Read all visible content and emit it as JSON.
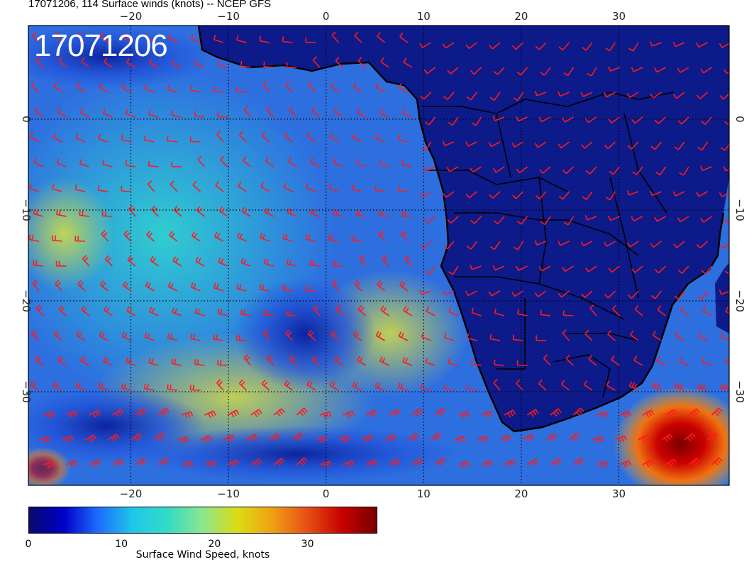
{
  "header": {
    "title": "17071206, 114 Surface winds (knots) -- NCEP GFS",
    "stamp": "17071206"
  },
  "map": {
    "lon_ticks": [
      {
        "value": -20,
        "label": "−20"
      },
      {
        "value": -10,
        "label": "−10"
      },
      {
        "value": 0,
        "label": "0"
      },
      {
        "value": 10,
        "label": "10"
      },
      {
        "value": 20,
        "label": "20"
      },
      {
        "value": 30,
        "label": "30"
      }
    ],
    "lat_ticks": [
      {
        "value": 0,
        "label": "0"
      },
      {
        "value": -10,
        "label": "−10"
      },
      {
        "value": -20,
        "label": "−20"
      },
      {
        "value": -30,
        "label": "−30"
      }
    ],
    "lon_range": [
      -30.5,
      41.3
    ],
    "lat_range": [
      -40.3,
      10.3
    ],
    "barb_color": "#ff1a1a",
    "land_color": "#0d1a8a",
    "ocean_color": "#2e6fe0"
  },
  "colorbar": {
    "title": "Surface Wind Speed, knots",
    "ticks": [
      {
        "value": 0,
        "label": "0"
      },
      {
        "value": 10,
        "label": "10"
      },
      {
        "value": 20,
        "label": "20"
      },
      {
        "value": 30,
        "label": "30"
      }
    ],
    "range": [
      0,
      37.5
    ],
    "colors": [
      "#0a0a6e",
      "#0000c8",
      "#1e6eff",
      "#1ec8e6",
      "#32dcc8",
      "#8ce68c",
      "#dcdc14",
      "#f0a014",
      "#e65014",
      "#c80000",
      "#780000"
    ]
  }
}
